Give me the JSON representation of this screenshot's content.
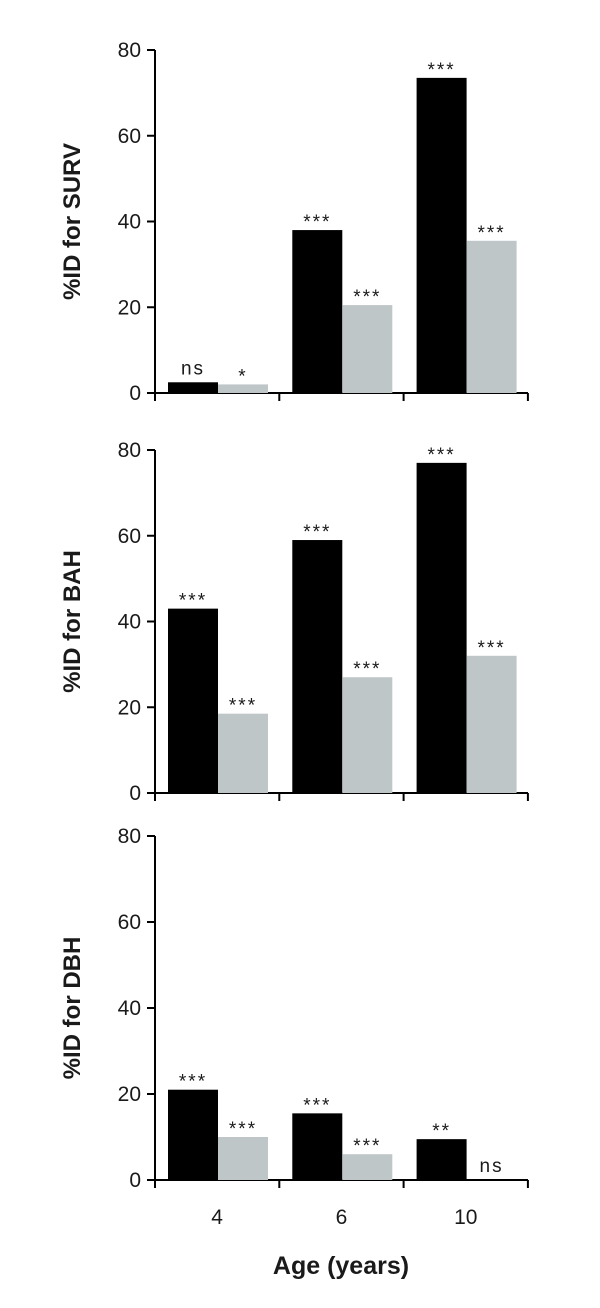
{
  "chart_data": {
    "type": "bar",
    "categories": [
      "4",
      "6",
      "10"
    ],
    "xlabel": "Age (years)",
    "colors": {
      "series_a": "#000000",
      "series_b": "#bfc6c8"
    },
    "panels": [
      {
        "ylabel": "%ID for SURV",
        "ylim": [
          0,
          80
        ],
        "yticks": [
          "0",
          "20",
          "40",
          "60",
          "80"
        ],
        "series": [
          {
            "values": [
              2.5,
              38,
              73.5
            ],
            "labels": [
              "ns",
              "***",
              "***"
            ]
          },
          {
            "values": [
              2,
              20.5,
              35.5
            ],
            "labels": [
              "*",
              "***",
              "***"
            ]
          }
        ]
      },
      {
        "ylabel": "%ID for BAH",
        "ylim": [
          0,
          80
        ],
        "yticks": [
          "0",
          "20",
          "40",
          "60",
          "80"
        ],
        "series": [
          {
            "values": [
              43,
              59,
              77
            ],
            "labels": [
              "***",
              "***",
              "***"
            ]
          },
          {
            "values": [
              18.5,
              27,
              32
            ],
            "labels": [
              "***",
              "***",
              "***"
            ]
          }
        ]
      },
      {
        "ylabel": "%ID for DBH",
        "ylim": [
          0,
          80
        ],
        "yticks": [
          "0",
          "20",
          "40",
          "60",
          "80"
        ],
        "series": [
          {
            "values": [
              21,
              15.5,
              9.5
            ],
            "labels": [
              "***",
              "***",
              "**"
            ]
          },
          {
            "values": [
              10,
              6,
              0
            ],
            "labels": [
              "***",
              "***",
              "ns"
            ]
          }
        ]
      }
    ]
  }
}
